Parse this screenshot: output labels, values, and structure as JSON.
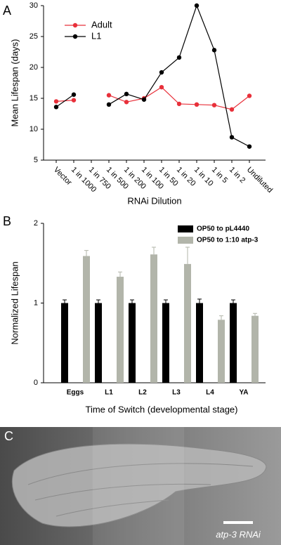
{
  "chart_data": [
    {
      "type": "line",
      "panel": "A",
      "x_label": "RNAi Dilution",
      "y_label": "Mean Lifespan  (days)",
      "categories": [
        "Vector",
        "1 in 1000",
        "1 in 750",
        "1 in 500",
        "1 in 200",
        "1 in 100",
        "1 in 50",
        "1 in 20",
        "1 in 10",
        "1 in 5",
        "1 in 2",
        "Undiluted"
      ],
      "series": [
        {
          "name": "Adult",
          "color": "#e8303a",
          "values": [
            14.5,
            14.7,
            null,
            15.5,
            14.4,
            15.0,
            16.8,
            14.1,
            14.0,
            13.9,
            13.2,
            15.4
          ]
        },
        {
          "name": "L1",
          "color": "#000000",
          "values": [
            13.6,
            15.6,
            null,
            14.0,
            15.7,
            14.8,
            19.2,
            21.6,
            30.0,
            22.8,
            8.7,
            7.2
          ]
        }
      ],
      "ylim": [
        5,
        30
      ],
      "yticks": [
        5,
        10,
        15,
        20,
        25,
        30
      ],
      "legend": "upper-left"
    },
    {
      "type": "bar",
      "panel": "B",
      "x_label": "Time of Switch (developmental stage)",
      "y_label": "Normalized Lifespan",
      "categories": [
        "Eggs",
        "L1",
        "L2",
        "L3",
        "L4",
        "YA"
      ],
      "series": [
        {
          "name": "OP50 to pL4440",
          "color": "#000000",
          "values": [
            1.0,
            1.0,
            1.0,
            1.0,
            1.0,
            1.0
          ],
          "errors": [
            0.04,
            0.04,
            0.04,
            0.04,
            0.05,
            0.04
          ]
        },
        {
          "name": "OP50 to 1:10 atp-3",
          "color": "#b2b5aa",
          "values": [
            1.59,
            1.33,
            1.61,
            1.49,
            0.79,
            0.84
          ],
          "errors": [
            0.07,
            0.06,
            0.09,
            0.21,
            0.05,
            0.03
          ]
        }
      ],
      "ylim": [
        0,
        2
      ],
      "yticks": [
        0,
        1,
        2
      ],
      "legend": "upper-right"
    }
  ],
  "panel_c": {
    "panel": "C",
    "caption": "atp-3 RNAi"
  }
}
